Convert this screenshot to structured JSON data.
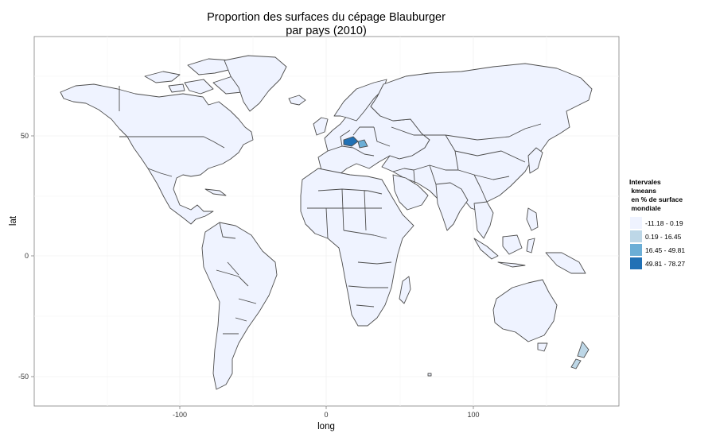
{
  "title": "Proportion des surfaces du cépage Blauburger\npar pays (2010)",
  "axes": {
    "xlabel": "long",
    "ylabel": "lat",
    "xticks": [
      "-100",
      "0",
      "100"
    ],
    "yticks": [
      "50",
      "0",
      "-50"
    ]
  },
  "legend": {
    "title": "Intervales\n kmeans\n en % de surface\n mondiale",
    "classes": [
      {
        "label": "-11.18 - 0.19",
        "color": "#eff3ff"
      },
      {
        "label": "0.19 - 16.45",
        "color": "#bdd7e7"
      },
      {
        "label": "16.45 - 49.81",
        "color": "#6baed6"
      },
      {
        "label": "49.81 - 78.27",
        "color": "#2171b5"
      }
    ]
  },
  "colors": {
    "land_default": "#eff3ff",
    "border": "#4d4d4d",
    "grid": "#f0f0f0",
    "panel_border": "#7f7f7f"
  },
  "highlighted_countries": [
    {
      "name": "Austria",
      "class": "49.81 - 78.27"
    },
    {
      "name": "Hungary",
      "class": "16.45 - 49.81"
    },
    {
      "name": "New Zealand",
      "class": "0.19 - 16.45"
    }
  ]
}
